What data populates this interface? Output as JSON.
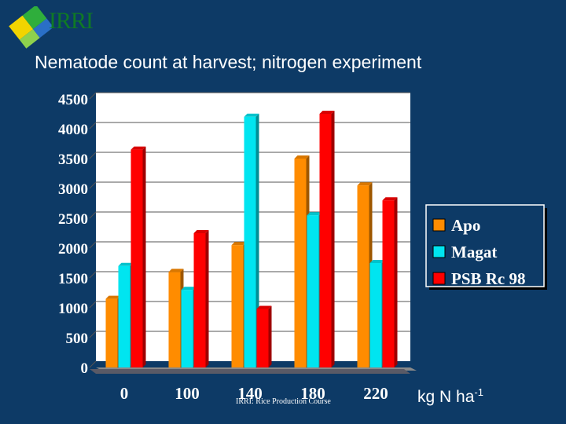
{
  "slide": {
    "logo_text": "IRRI",
    "title": "Nematode count at harvest; nitrogen experiment",
    "footer": "IRRI: Rice Production Course",
    "unit_main": "kg N ha",
    "unit_sup": "-1"
  },
  "chart_data": {
    "type": "bar",
    "title": "Nematode count at harvest; nitrogen experiment",
    "xlabel": "kg N ha-1",
    "ylabel": "",
    "categories": [
      "0",
      "100",
      "140",
      "180",
      "220"
    ],
    "ylim": [
      0,
      4500
    ],
    "yticks": [
      0,
      500,
      1000,
      1500,
      2000,
      2500,
      3000,
      3500,
      4000,
      4500
    ],
    "series": [
      {
        "name": "Apo",
        "color": "#ff8c00",
        "values": [
          1150,
          1600,
          2050,
          3500,
          3050
        ]
      },
      {
        "name": "Magat",
        "color": "#00e5f0",
        "values": [
          1700,
          1300,
          4200,
          2550,
          1750
        ]
      },
      {
        "name": "PSB Rc 98",
        "color": "#ff0000",
        "values": [
          3650,
          2250,
          980,
          4250,
          2800
        ]
      }
    ],
    "grid": true,
    "legend_position": "right",
    "style": "3d-bar"
  }
}
